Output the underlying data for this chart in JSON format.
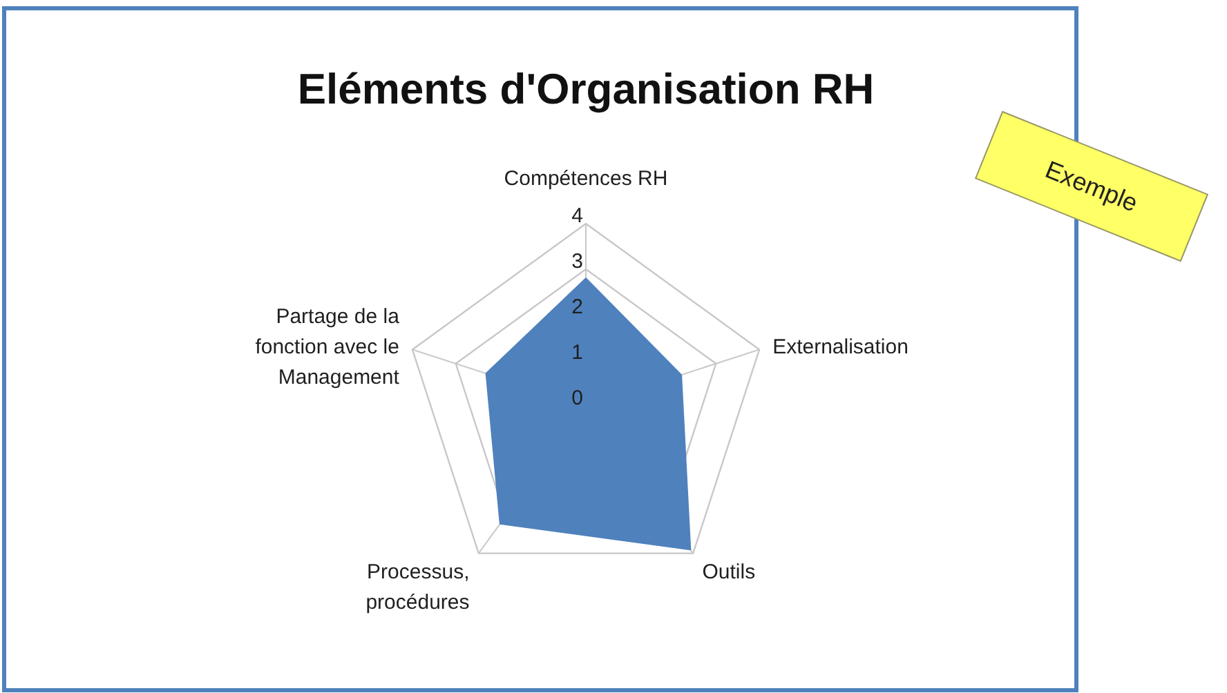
{
  "chart_data": {
    "type": "radar",
    "title": "Eléments d'Organisation RH",
    "categories": [
      "Compétences RH",
      "Externalisation",
      "Outils",
      "Processus, procédures",
      "Partage de la fonction avec le Management"
    ],
    "series": [
      {
        "color": "#4f81bd",
        "values": [
          2.8,
          2.2,
          3.9,
          3.2,
          2.3
        ]
      }
    ],
    "ylim": [
      0,
      4
    ],
    "yticks": [
      0,
      1,
      2,
      3,
      4
    ],
    "grid": true,
    "annotations": [
      "Exemple"
    ]
  }
}
